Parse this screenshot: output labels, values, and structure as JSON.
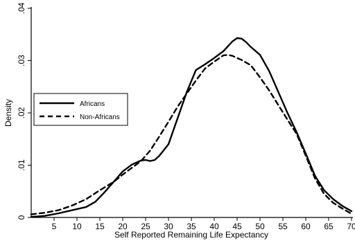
{
  "chart_data": {
    "type": "line",
    "xlabel": "Self Reported Remaining Life Expectancy",
    "ylabel": "Density",
    "xlim": [
      0,
      70
    ],
    "ylim": [
      0,
      0.04
    ],
    "x_ticks": [
      5,
      10,
      15,
      20,
      25,
      30,
      35,
      40,
      45,
      50,
      55,
      60,
      65,
      70
    ],
    "y_ticks": [
      "0",
      ".01",
      ".02",
      ".03",
      ".04"
    ],
    "y_tick_values": [
      0,
      0.01,
      0.02,
      0.03,
      0.04
    ],
    "grid": false,
    "legend_position": "left",
    "series": [
      {
        "name": "Africans",
        "style": "solid",
        "color": "#000000",
        "x": [
          0,
          3,
          6,
          9,
          12,
          14,
          16,
          18,
          20,
          22,
          24,
          25,
          26,
          27,
          28,
          30,
          32,
          34,
          36,
          38,
          40,
          42,
          44,
          45,
          46,
          47,
          48,
          50,
          52,
          54,
          56,
          58,
          60,
          62,
          64,
          66,
          68,
          70
        ],
        "y": [
          0.0001,
          0.0003,
          0.0008,
          0.0014,
          0.002,
          0.003,
          0.0048,
          0.0068,
          0.0088,
          0.0101,
          0.0109,
          0.011,
          0.0108,
          0.011,
          0.0118,
          0.014,
          0.019,
          0.024,
          0.0282,
          0.0293,
          0.0305,
          0.0318,
          0.0337,
          0.0343,
          0.0342,
          0.0335,
          0.0326,
          0.0311,
          0.028,
          0.024,
          0.02,
          0.0163,
          0.0122,
          0.008,
          0.0052,
          0.0035,
          0.0022,
          0.0012
        ]
      },
      {
        "name": "Non-Africans",
        "style": "dashed",
        "color": "#000000",
        "x": [
          0,
          3,
          6,
          9,
          12,
          15,
          18,
          20,
          22,
          24,
          26,
          28,
          30,
          32,
          34,
          36,
          38,
          40,
          42,
          43,
          44,
          46,
          48,
          50,
          52,
          54,
          56,
          58,
          60,
          62,
          64,
          66,
          68,
          70
        ],
        "y": [
          0.0006,
          0.0009,
          0.0014,
          0.0023,
          0.0035,
          0.0052,
          0.0068,
          0.0082,
          0.0095,
          0.0108,
          0.0128,
          0.0155,
          0.0183,
          0.0212,
          0.0237,
          0.0262,
          0.0285,
          0.0298,
          0.031,
          0.0311,
          0.0309,
          0.0301,
          0.0291,
          0.0268,
          0.0243,
          0.0215,
          0.0187,
          0.016,
          0.0118,
          0.0075,
          0.0045,
          0.0028,
          0.0017,
          0.0007
        ]
      }
    ]
  }
}
